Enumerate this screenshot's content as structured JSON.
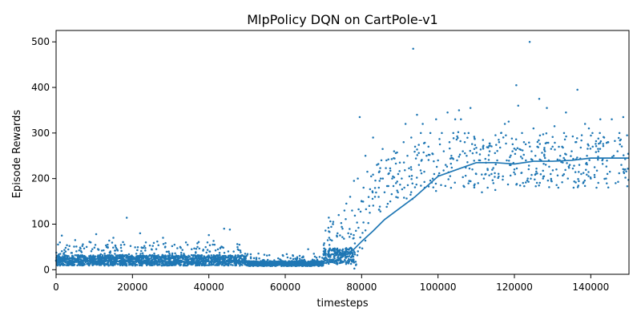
{
  "chart_data": {
    "type": "scatter",
    "title": "MlpPolicy DQN on CartPole-v1",
    "xlabel": "timesteps",
    "ylabel": "Episode Rewards",
    "xlim": [
      0,
      150000
    ],
    "ylim": [
      -10,
      525
    ],
    "xticks": [
      0,
      20000,
      40000,
      60000,
      80000,
      100000,
      120000,
      140000
    ],
    "yticks": [
      0,
      100,
      200,
      300,
      400,
      500
    ],
    "xtick_labels": [
      "0",
      "20000",
      "40000",
      "60000",
      "80000",
      "100000",
      "120000",
      "140000"
    ],
    "ytick_labels": [
      "0",
      "100",
      "200",
      "300",
      "400",
      "500"
    ],
    "grid": false,
    "legend": "none",
    "color": "#1f77b4",
    "series": [
      {
        "type": "scatter",
        "description_points": [
          [
            1000,
            60
          ],
          [
            1500,
            75
          ],
          [
            2500,
            40
          ],
          [
            3500,
            52
          ],
          [
            5000,
            65
          ],
          [
            6000,
            30
          ],
          [
            8000,
            50
          ],
          [
            9500,
            45
          ],
          [
            10500,
            78
          ],
          [
            12000,
            42
          ],
          [
            13500,
            55
          ],
          [
            15000,
            70
          ],
          [
            17000,
            48
          ],
          [
            18500,
            114
          ],
          [
            19500,
            52
          ],
          [
            21000,
            35
          ],
          [
            22000,
            80
          ],
          [
            23500,
            60
          ],
          [
            25000,
            45
          ],
          [
            26500,
            62
          ],
          [
            28000,
            70
          ],
          [
            29500,
            40
          ],
          [
            31000,
            55
          ],
          [
            32500,
            50
          ],
          [
            34000,
            60
          ],
          [
            35500,
            45
          ],
          [
            37000,
            58
          ],
          [
            38500,
            42
          ],
          [
            40000,
            76
          ],
          [
            41500,
            55
          ],
          [
            43000,
            48
          ],
          [
            44000,
            90
          ],
          [
            45500,
            88
          ],
          [
            46500,
            40
          ],
          [
            48000,
            55
          ],
          [
            49500,
            35
          ],
          [
            51000,
            14
          ],
          [
            53000,
            12
          ],
          [
            55000,
            15
          ],
          [
            57000,
            11
          ],
          [
            59000,
            13
          ],
          [
            61000,
            18
          ],
          [
            63000,
            20
          ],
          [
            65000,
            22
          ],
          [
            66000,
            45
          ],
          [
            67500,
            35
          ],
          [
            69000,
            28
          ],
          [
            70500,
            40
          ],
          [
            71500,
            70
          ],
          [
            72500,
            100
          ],
          [
            73500,
            75
          ],
          [
            74000,
            120
          ],
          [
            75000,
            90
          ],
          [
            75500,
            130
          ],
          [
            76000,
            145
          ],
          [
            76500,
            80
          ],
          [
            77000,
            160
          ],
          [
            77500,
            130
          ],
          [
            78000,
            195
          ],
          [
            78500,
            10
          ],
          [
            79000,
            200
          ],
          [
            79500,
            335
          ],
          [
            80000,
            150
          ],
          [
            80500,
            180
          ],
          [
            81000,
            250
          ],
          [
            81500,
            215
          ],
          [
            82000,
            140
          ],
          [
            82500,
            205
          ],
          [
            83000,
            290
          ],
          [
            83500,
            160
          ],
          [
            84000,
            230
          ],
          [
            84500,
            180
          ],
          [
            85000,
            200
          ],
          [
            85500,
            265
          ],
          [
            86000,
            170
          ],
          [
            86500,
            240
          ],
          [
            87000,
            210
          ],
          [
            87500,
            150
          ],
          [
            88000,
            200
          ],
          [
            88500,
            260
          ],
          [
            89000,
            190
          ],
          [
            89500,
            170
          ],
          [
            90000,
            235
          ],
          [
            90500,
            200
          ],
          [
            91000,
            280
          ],
          [
            91500,
            320
          ],
          [
            92000,
            250
          ],
          [
            92500,
            205
          ],
          [
            93000,
            290
          ],
          [
            93500,
            485
          ],
          [
            94000,
            270
          ],
          [
            94500,
            340
          ],
          [
            95000,
            230
          ],
          [
            95500,
            300
          ],
          [
            96000,
            320
          ],
          [
            96500,
            180
          ],
          [
            97000,
            250
          ],
          [
            97500,
            270
          ],
          [
            98000,
            300
          ],
          [
            98500,
            255
          ],
          [
            99000,
            210
          ],
          [
            99500,
            330
          ],
          [
            100000,
            240
          ],
          [
            100500,
            275
          ],
          [
            101000,
            300
          ],
          [
            101500,
            260
          ],
          [
            102000,
            230
          ],
          [
            102500,
            345
          ],
          [
            103000,
            280
          ],
          [
            103500,
            250
          ],
          [
            104000,
            300
          ],
          [
            104500,
            330
          ],
          [
            105000,
            240
          ],
          [
            105500,
            350
          ],
          [
            106000,
            330
          ],
          [
            106500,
            260
          ],
          [
            107000,
            280
          ],
          [
            107500,
            250
          ],
          [
            108000,
            300
          ],
          [
            108500,
            355
          ],
          [
            109000,
            220
          ],
          [
            109500,
            265
          ],
          [
            110000,
            210
          ],
          [
            110500,
            190
          ],
          [
            111000,
            240
          ],
          [
            111500,
            170
          ],
          [
            112000,
            200
          ],
          [
            112500,
            210
          ],
          [
            113000,
            180
          ],
          [
            113500,
            260
          ],
          [
            114000,
            210
          ],
          [
            114500,
            190
          ],
          [
            115000,
            175
          ],
          [
            115500,
            240
          ],
          [
            116000,
            280
          ],
          [
            116500,
            300
          ],
          [
            117000,
            205
          ],
          [
            117500,
            320
          ],
          [
            118000,
            240
          ],
          [
            118500,
            325
          ],
          [
            119000,
            230
          ],
          [
            119500,
            260
          ],
          [
            120000,
            220
          ],
          [
            120500,
            405
          ],
          [
            121000,
            360
          ],
          [
            121500,
            185
          ],
          [
            122000,
            300
          ],
          [
            122500,
            280
          ],
          [
            123000,
            240
          ],
          [
            123500,
            200
          ],
          [
            124000,
            500
          ],
          [
            124500,
            260
          ],
          [
            125000,
            310
          ],
          [
            125500,
            250
          ],
          [
            126000,
            270
          ],
          [
            126500,
            375
          ],
          [
            127000,
            240
          ],
          [
            127500,
            200
          ],
          [
            128000,
            260
          ],
          [
            128500,
            355
          ],
          [
            129000,
            240
          ],
          [
            129500,
            210
          ],
          [
            130000,
            270
          ],
          [
            130500,
            315
          ],
          [
            131000,
            220
          ],
          [
            131500,
            180
          ],
          [
            132000,
            250
          ],
          [
            132500,
            270
          ],
          [
            133000,
            300
          ],
          [
            133500,
            345
          ],
          [
            134000,
            200
          ],
          [
            134500,
            230
          ],
          [
            135000,
            260
          ],
          [
            135500,
            180
          ],
          [
            136000,
            280
          ],
          [
            136500,
            395
          ],
          [
            137000,
            230
          ],
          [
            137500,
            210
          ],
          [
            138000,
            190
          ],
          [
            138500,
            320
          ],
          [
            139000,
            250
          ],
          [
            139500,
            310
          ],
          [
            140000,
            200
          ],
          [
            140500,
            270
          ],
          [
            141000,
            225
          ],
          [
            141500,
            180
          ],
          [
            142000,
            260
          ],
          [
            142500,
            330
          ],
          [
            143000,
            240
          ],
          [
            143500,
            290
          ],
          [
            144000,
            200
          ],
          [
            144500,
            280
          ],
          [
            145000,
            215
          ],
          [
            145500,
            330
          ],
          [
            146000,
            250
          ],
          [
            146500,
            190
          ],
          [
            147000,
            260
          ],
          [
            147500,
            300
          ],
          [
            148000,
            230
          ],
          [
            148500,
            335
          ],
          [
            149000,
            220
          ],
          [
            149500,
            295
          ]
        ]
      },
      {
        "type": "line",
        "x": [
          0,
          10000,
          20000,
          30000,
          40000,
          48000,
          50000,
          55000,
          60000,
          65000,
          70000,
          74000,
          78000,
          80000,
          83000,
          86000,
          90000,
          94000,
          98000,
          100000,
          105000,
          110000,
          115000,
          120000,
          125000,
          130000,
          135000,
          140000,
          145000,
          150000
        ],
        "y": [
          18,
          19,
          18,
          18,
          18,
          18,
          12,
          12,
          12,
          12,
          14,
          22,
          45,
          62,
          85,
          110,
          135,
          160,
          190,
          205,
          220,
          235,
          235,
          232,
          238,
          238,
          240,
          245,
          245,
          245
        ]
      }
    ]
  }
}
